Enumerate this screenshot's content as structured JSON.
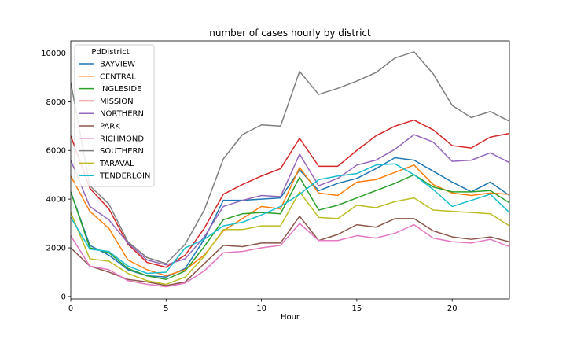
{
  "chart_data": {
    "type": "line",
    "title": "number of cases hourly by district",
    "xlabel": "Hour",
    "ylabel": "",
    "xlim": [
      0,
      23
    ],
    "ylim": [
      -100,
      10500
    ],
    "x_ticks": [
      0,
      5,
      10,
      15,
      20
    ],
    "y_ticks": [
      0,
      2000,
      4000,
      6000,
      8000,
      10000
    ],
    "grid": false,
    "legend_title": "PdDistrict",
    "legend_position": "upper-left",
    "x": [
      0,
      1,
      2,
      3,
      4,
      5,
      6,
      7,
      8,
      9,
      10,
      11,
      12,
      13,
      14,
      15,
      16,
      17,
      18,
      19,
      20,
      21,
      22,
      23
    ],
    "series": [
      {
        "name": "BAYVIEW",
        "color": "#1f77b4",
        "values": [
          4300,
          2100,
          1700,
          1100,
          850,
          800,
          1150,
          2350,
          3950,
          3950,
          4000,
          4050,
          5200,
          4350,
          4650,
          4850,
          5250,
          5700,
          5600,
          5150,
          4700,
          4300,
          4700,
          4150
        ]
      },
      {
        "name": "CENTRAL",
        "color": "#ff7f0e",
        "values": [
          4950,
          3500,
          2800,
          1500,
          1100,
          850,
          1100,
          1700,
          2700,
          3200,
          3700,
          3600,
          5300,
          4250,
          4150,
          4700,
          4800,
          5100,
          5400,
          4600,
          4250,
          4150,
          4250,
          4200
        ]
      },
      {
        "name": "INGLESIDE",
        "color": "#2ca02c",
        "values": [
          4300,
          2000,
          1800,
          1150,
          850,
          700,
          1050,
          2050,
          3150,
          3400,
          3450,
          3400,
          4900,
          3550,
          3750,
          4050,
          4350,
          4650,
          5000,
          4500,
          4300,
          4300,
          4350,
          3850
        ]
      },
      {
        "name": "MISSION",
        "color": "#d62728",
        "values": [
          6600,
          4450,
          3600,
          2150,
          1400,
          1200,
          1700,
          2800,
          4200,
          4600,
          4950,
          5250,
          6500,
          5350,
          5350,
          6000,
          6600,
          7000,
          7250,
          6850,
          6200,
          6100,
          6550,
          6700
        ]
      },
      {
        "name": "NORTHERN",
        "color": "#9467bd",
        "values": [
          5600,
          3700,
          3150,
          2200,
          1500,
          1300,
          1550,
          2450,
          3700,
          3950,
          4150,
          4100,
          5850,
          4550,
          4850,
          5400,
          5600,
          6050,
          6650,
          6350,
          5550,
          5600,
          5900,
          5500
        ]
      },
      {
        "name": "PARK",
        "color": "#8c564b",
        "values": [
          2000,
          1250,
          1000,
          700,
          600,
          450,
          600,
          1350,
          2100,
          2050,
          2200,
          2200,
          3300,
          2300,
          2550,
          2950,
          2850,
          3200,
          3200,
          2700,
          2450,
          2350,
          2450,
          2250
        ]
      },
      {
        "name": "RICHMOND",
        "color": "#e377c2",
        "values": [
          2500,
          1250,
          1100,
          650,
          500,
          400,
          550,
          1050,
          1800,
          1850,
          2000,
          2100,
          3000,
          2300,
          2300,
          2500,
          2400,
          2600,
          2950,
          2400,
          2250,
          2200,
          2350,
          2050
        ]
      },
      {
        "name": "SOUTHERN",
        "color": "#7f7f7f",
        "values": [
          8800,
          4550,
          3800,
          2250,
          1600,
          1350,
          2150,
          3550,
          5650,
          6650,
          7050,
          7000,
          9250,
          8300,
          8550,
          8850,
          9200,
          9800,
          10050,
          9150,
          7850,
          7350,
          7600,
          7200
        ]
      },
      {
        "name": "TARAVAL",
        "color": "#bcbd22",
        "values": [
          3450,
          1550,
          1450,
          950,
          650,
          500,
          800,
          1650,
          2750,
          2750,
          2900,
          2900,
          4300,
          3250,
          3200,
          3750,
          3650,
          3900,
          4050,
          3550,
          3500,
          3450,
          3400,
          2900
        ]
      },
      {
        "name": "TENDERLOIN",
        "color": "#17becf",
        "values": [
          3250,
          1950,
          1850,
          1250,
          950,
          1000,
          2000,
          2350,
          2900,
          3050,
          3350,
          3700,
          4200,
          4800,
          4950,
          5050,
          5400,
          5450,
          5000,
          4400,
          3700,
          3950,
          4200,
          3450
        ]
      }
    ]
  }
}
